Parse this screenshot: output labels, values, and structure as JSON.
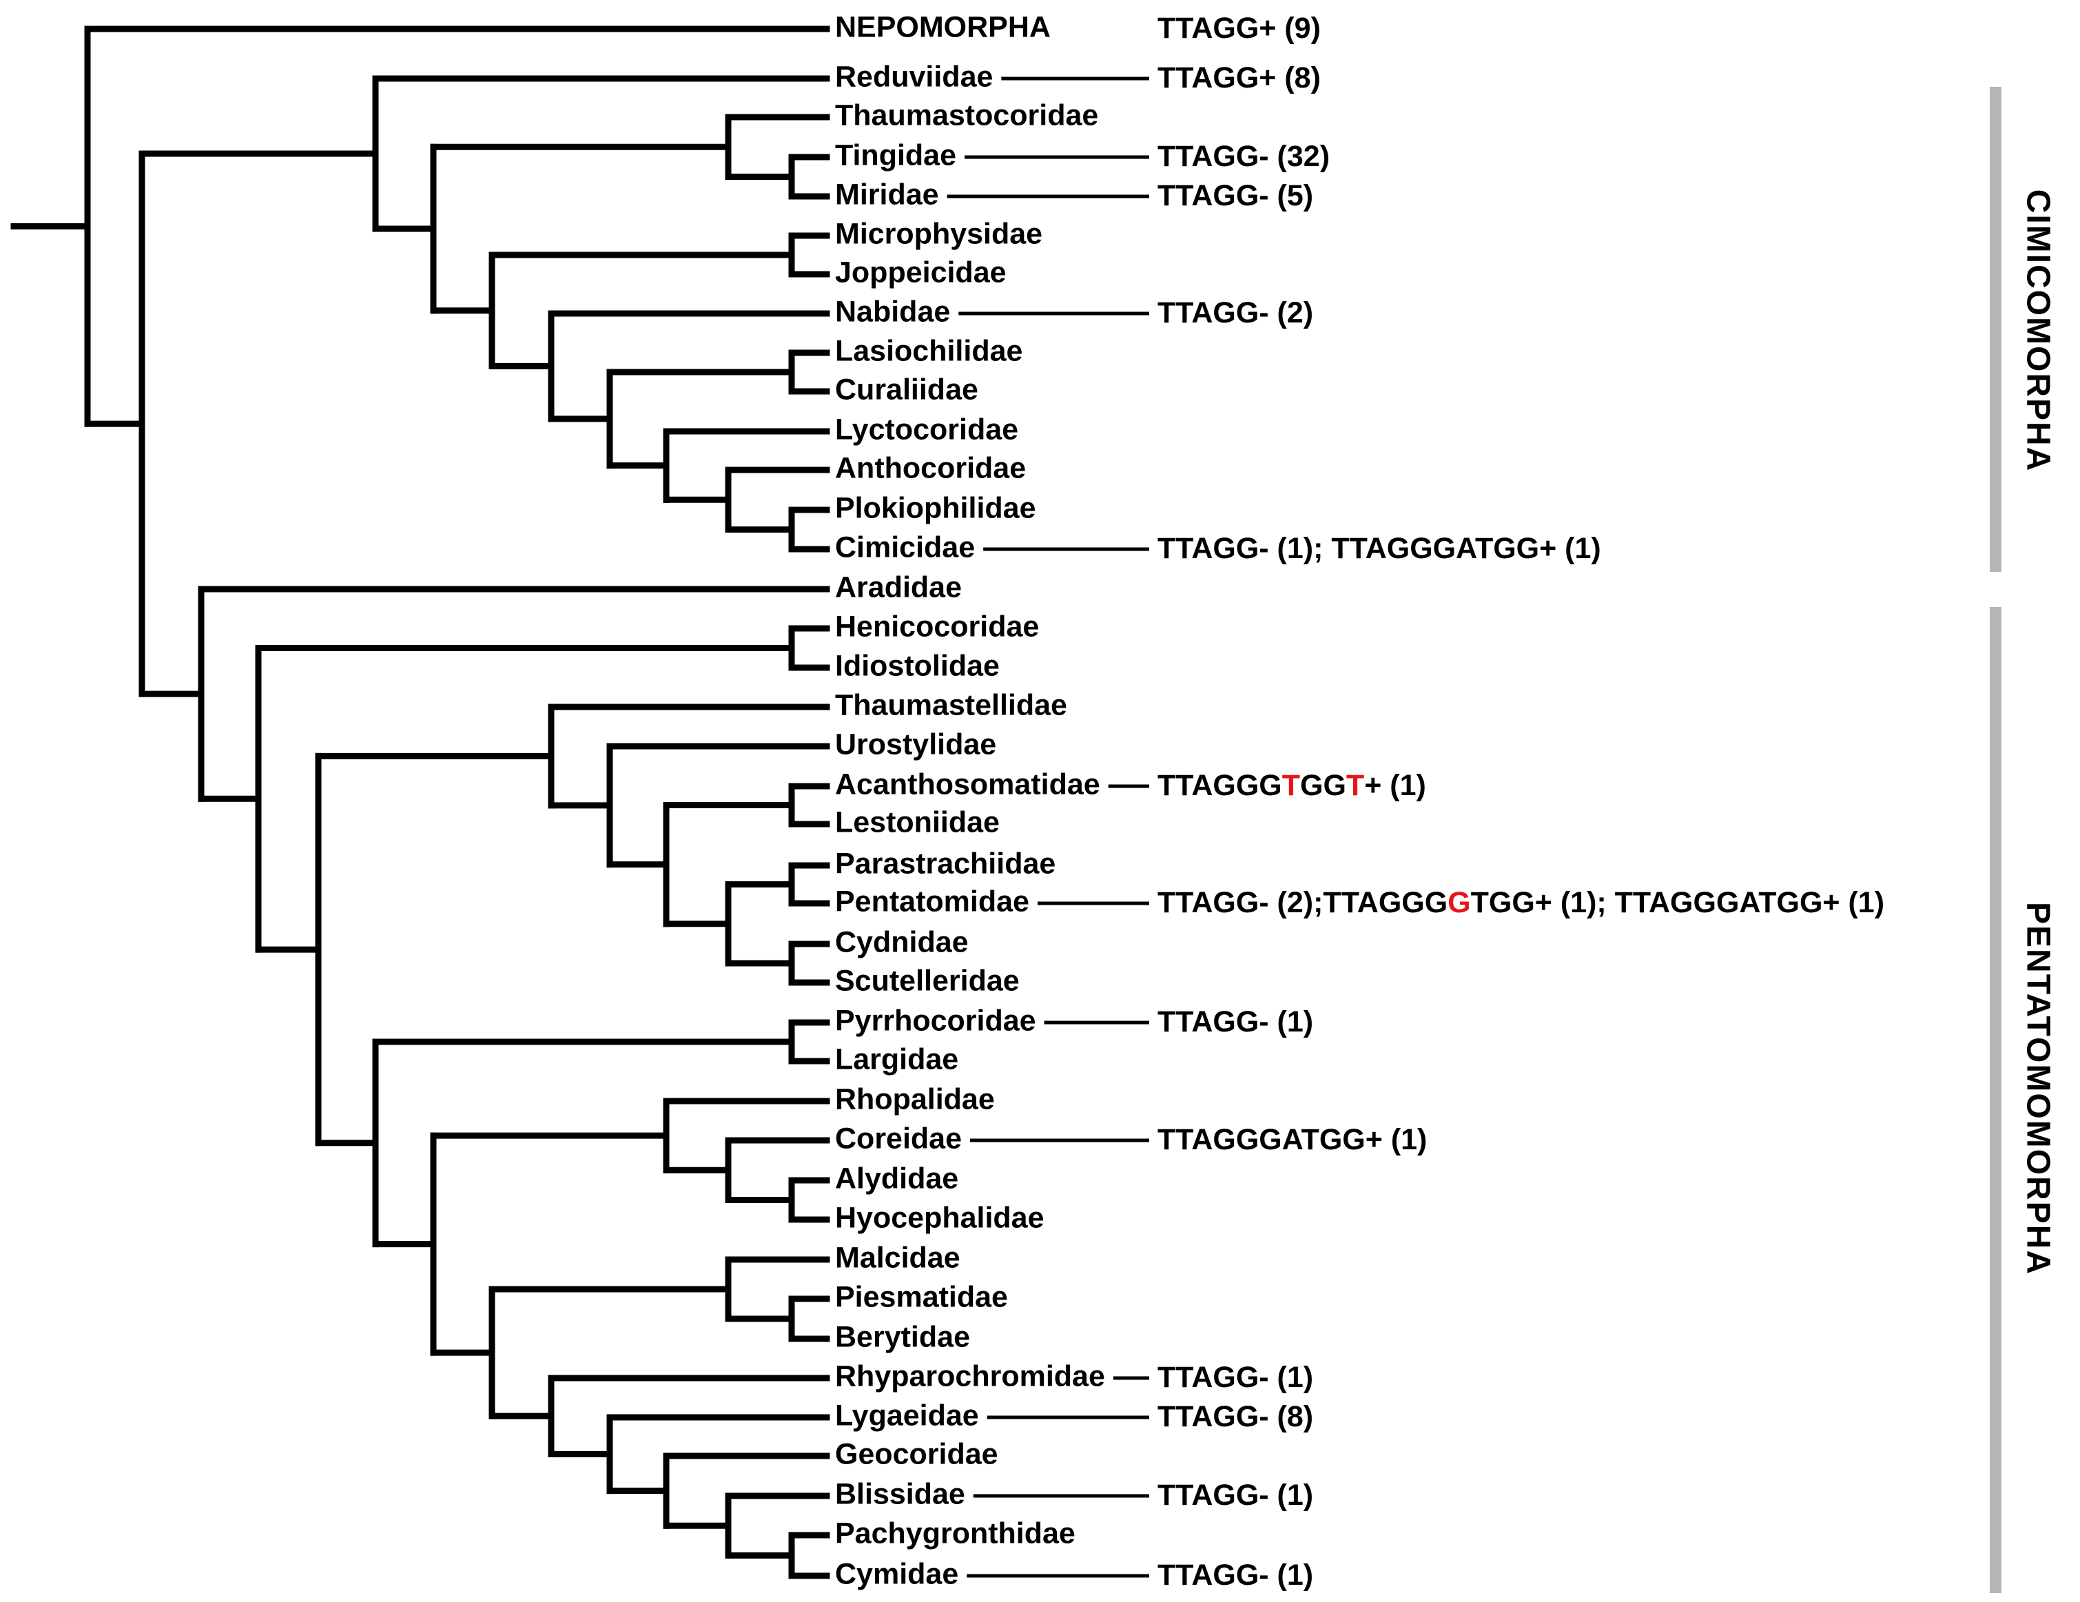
{
  "taxa": [
    {
      "id": "t0",
      "name": "NEPOMORPHA"
    },
    {
      "id": "t1",
      "name": "Reduviidae"
    },
    {
      "id": "t2",
      "name": "Thaumastocoridae"
    },
    {
      "id": "t3",
      "name": "Tingidae"
    },
    {
      "id": "t4",
      "name": "Miridae"
    },
    {
      "id": "t5",
      "name": "Microphysidae"
    },
    {
      "id": "t6",
      "name": "Joppeicidae"
    },
    {
      "id": "t7",
      "name": "Nabidae"
    },
    {
      "id": "t8",
      "name": "Lasiochilidae"
    },
    {
      "id": "t9",
      "name": "Curaliidae"
    },
    {
      "id": "t10",
      "name": "Lyctocoridae"
    },
    {
      "id": "t11",
      "name": "Anthocoridae"
    },
    {
      "id": "t12",
      "name": "Plokiophilidae"
    },
    {
      "id": "t13",
      "name": "Cimicidae"
    },
    {
      "id": "t14",
      "name": "Aradidae"
    },
    {
      "id": "t15",
      "name": "Henicocoridae"
    },
    {
      "id": "t16",
      "name": "Idiostolidae"
    },
    {
      "id": "t17",
      "name": "Thaumastellidae"
    },
    {
      "id": "t18",
      "name": "Urostylidae"
    },
    {
      "id": "t19",
      "name": "Acanthosomatidae"
    },
    {
      "id": "t20",
      "name": "Lestoniidae"
    },
    {
      "id": "t21",
      "name": "Parastrachiidae"
    },
    {
      "id": "t22",
      "name": "Pentatomidae"
    },
    {
      "id": "t23",
      "name": "Cydnidae"
    },
    {
      "id": "t24",
      "name": "Scutelleridae"
    },
    {
      "id": "t25",
      "name": "Pyrrhocoridae"
    },
    {
      "id": "t26",
      "name": "Largidae"
    },
    {
      "id": "t27",
      "name": "Rhopalidae"
    },
    {
      "id": "t28",
      "name": "Coreidae"
    },
    {
      "id": "t29",
      "name": "Alydidae"
    },
    {
      "id": "t30",
      "name": "Hyocephalidae"
    },
    {
      "id": "t31",
      "name": "Malcidae"
    },
    {
      "id": "t32",
      "name": "Piesmatidae"
    },
    {
      "id": "t33",
      "name": "Berytidae"
    },
    {
      "id": "t34",
      "name": "Rhyparochromidae"
    },
    {
      "id": "t35",
      "name": "Lygaeidae"
    },
    {
      "id": "t36",
      "name": "Geocoridae"
    },
    {
      "id": "t37",
      "name": "Blissidae"
    },
    {
      "id": "t38",
      "name": "Pachygronthidae"
    },
    {
      "id": "t39",
      "name": "Cymidae"
    }
  ],
  "telomere_annotations": [
    {
      "taxon": "t0",
      "segments": [
        {
          "text": "TTAGG+ (9)"
        }
      ]
    },
    {
      "taxon": "t1",
      "segments": [
        {
          "text": "TTAGG+ (8)"
        }
      ]
    },
    {
      "taxon": "t3",
      "segments": [
        {
          "text": "TTAGG- (32)"
        }
      ]
    },
    {
      "taxon": "t4",
      "segments": [
        {
          "text": "TTAGG- (5)"
        }
      ]
    },
    {
      "taxon": "t7",
      "segments": [
        {
          "text": "TTAGG- (2)"
        }
      ]
    },
    {
      "taxon": "t13",
      "segments": [
        {
          "text": "TTAGG- (1); TTAGGGATGG+ (1)"
        }
      ]
    },
    {
      "taxon": "t19",
      "segments": [
        {
          "text": "TTAGGG"
        },
        {
          "text": "T",
          "mutated": true
        },
        {
          "text": "GG"
        },
        {
          "text": "T",
          "mutated": true
        },
        {
          "text": "+ (1)"
        }
      ]
    },
    {
      "taxon": "t22",
      "segments": [
        {
          "text": "TTAGG- (2);TTAGGG"
        },
        {
          "text": "G",
          "mutated": true
        },
        {
          "text": "TGG+ (1); TTAGGGATGG+ (1)"
        }
      ]
    },
    {
      "taxon": "t25",
      "segments": [
        {
          "text": "TTAGG- (1)"
        }
      ]
    },
    {
      "taxon": "t28",
      "segments": [
        {
          "text": "TTAGGGATGG+ (1)"
        }
      ]
    },
    {
      "taxon": "t34",
      "segments": [
        {
          "text": "TTAGG- (1)"
        }
      ]
    },
    {
      "taxon": "t35",
      "segments": [
        {
          "text": "TTAGG- (8)"
        }
      ]
    },
    {
      "taxon": "t37",
      "segments": [
        {
          "text": "TTAGG- (1)"
        }
      ]
    },
    {
      "taxon": "t39",
      "segments": [
        {
          "text": "TTAGG- (1)"
        }
      ]
    }
  ],
  "clades": [
    {
      "id": "cimicomorpha",
      "label": "CIMICOMORPHA"
    },
    {
      "id": "pentatomomorpha",
      "label": "PENTATOMOMORPHA"
    }
  ],
  "colors": {
    "mutation_highlight": "#e8141c",
    "clade_bar": "#b5b5b5",
    "branch": "#000000"
  }
}
